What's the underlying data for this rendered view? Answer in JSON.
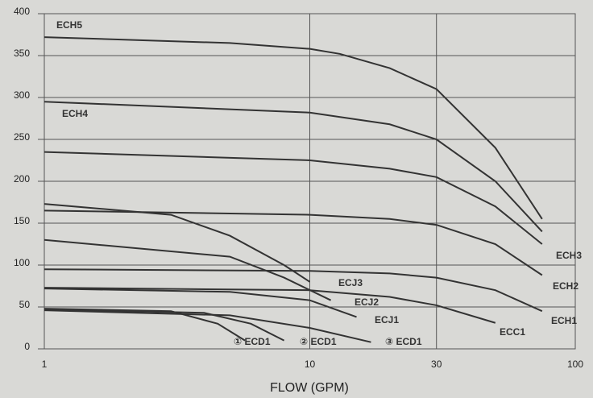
{
  "chart_data": {
    "type": "line",
    "x_label": "FLOW (GPM)",
    "log_x": true,
    "xlim": [
      1,
      100
    ],
    "xticks": [
      1,
      10,
      30,
      100
    ],
    "ylim": [
      0,
      400
    ],
    "yticks": [
      0,
      50,
      100,
      150,
      200,
      250,
      300,
      350,
      400
    ],
    "grid": true,
    "series": [
      {
        "name": "ECH5",
        "color": "#333333",
        "x": [
          1,
          5,
          10,
          13,
          20,
          30,
          50,
          75
        ],
        "values": [
          372,
          365,
          358,
          352,
          335,
          310,
          240,
          155
        ]
      },
      {
        "name": "ECH4",
        "color": "#333333",
        "x": [
          1,
          10,
          20,
          30,
          50,
          75
        ],
        "values": [
          295,
          282,
          268,
          250,
          200,
          140
        ]
      },
      {
        "name": "ECH3",
        "color": "#333333",
        "x": [
          1,
          10,
          20,
          30,
          50,
          75
        ],
        "values": [
          235,
          225,
          215,
          205,
          170,
          125
        ]
      },
      {
        "name": "ECH2",
        "color": "#333333",
        "x": [
          1,
          10,
          20,
          30,
          50,
          75
        ],
        "values": [
          165,
          160,
          155,
          148,
          125,
          88
        ]
      },
      {
        "name": "ECH1",
        "color": "#333333",
        "x": [
          1,
          10,
          20,
          30,
          50,
          75
        ],
        "values": [
          95,
          93,
          90,
          85,
          70,
          45
        ]
      },
      {
        "name": "ECC1",
        "color": "#333333",
        "x": [
          1,
          10,
          20,
          30,
          50
        ],
        "values": [
          73,
          70,
          62,
          52,
          31
        ]
      },
      {
        "name": "ECJ3",
        "color": "#333333",
        "x": [
          1,
          3,
          5,
          8,
          10
        ],
        "values": [
          173,
          160,
          135,
          100,
          80
        ]
      },
      {
        "name": "ECJ2",
        "color": "#333333",
        "x": [
          1,
          5,
          8,
          12
        ],
        "values": [
          130,
          110,
          85,
          58
        ]
      },
      {
        "name": "ECJ1",
        "color": "#333333",
        "x": [
          1,
          5,
          10,
          15
        ],
        "values": [
          72,
          68,
          58,
          38
        ]
      },
      {
        "name": "① ECD1",
        "color": "#333333",
        "x": [
          1,
          3,
          4.5,
          5.7
        ],
        "values": [
          48,
          45,
          30,
          10
        ]
      },
      {
        "name": "② ECD1",
        "color": "#333333",
        "x": [
          1,
          4,
          6,
          8
        ],
        "values": [
          47,
          43,
          30,
          10
        ]
      },
      {
        "name": "③ ECD1",
        "color": "#333333",
        "x": [
          1,
          5,
          10,
          17
        ],
        "values": [
          46,
          40,
          25,
          8
        ]
      }
    ]
  }
}
